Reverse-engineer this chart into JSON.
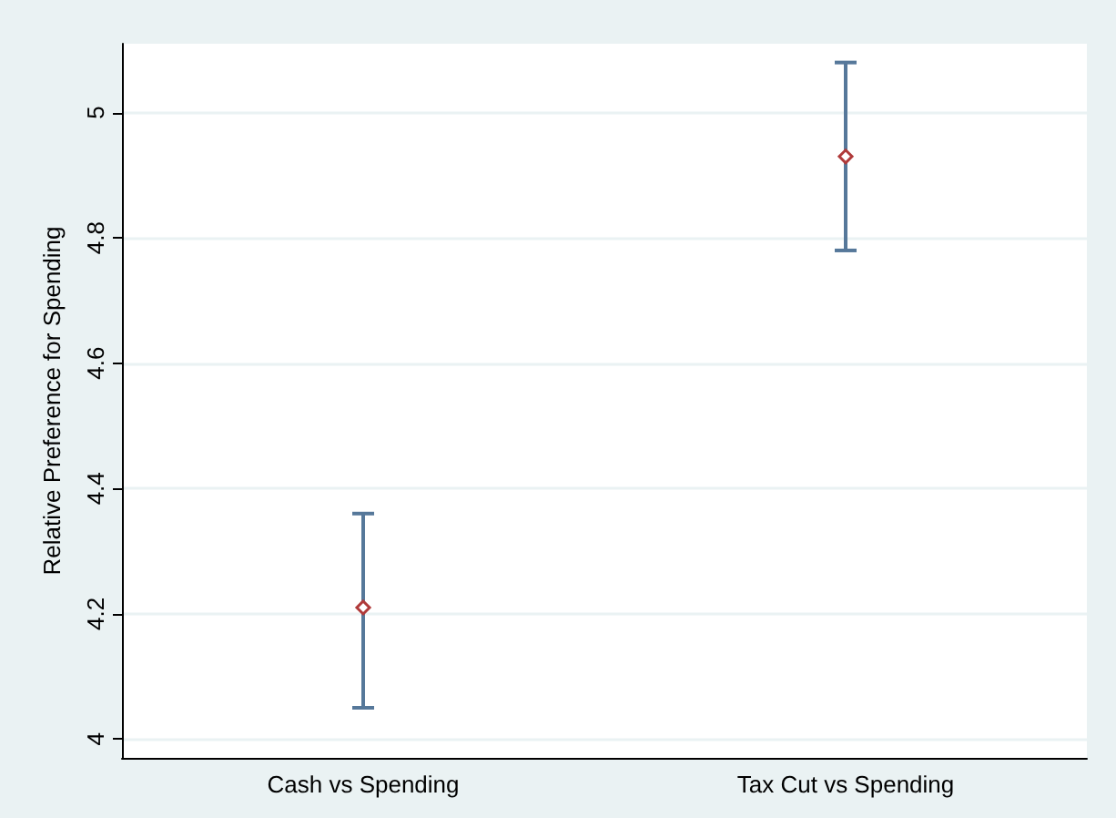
{
  "chart_data": {
    "type": "scatter",
    "ylabel": "Relative Preference for Spending",
    "categories": [
      "Cash vs Spending",
      "Tax Cut vs Spending"
    ],
    "series": [
      {
        "color": "#b03a3a",
        "values": [
          4.21,
          4.93
        ],
        "errors": [
          [
            4.05,
            4.36
          ],
          [
            4.78,
            5.08
          ]
        ]
      }
    ],
    "ylim": [
      3.97,
      5.11
    ],
    "yticks": [
      4,
      4.2,
      4.4,
      4.6,
      4.8,
      5
    ],
    "grid": "y",
    "marker": "diamond"
  }
}
